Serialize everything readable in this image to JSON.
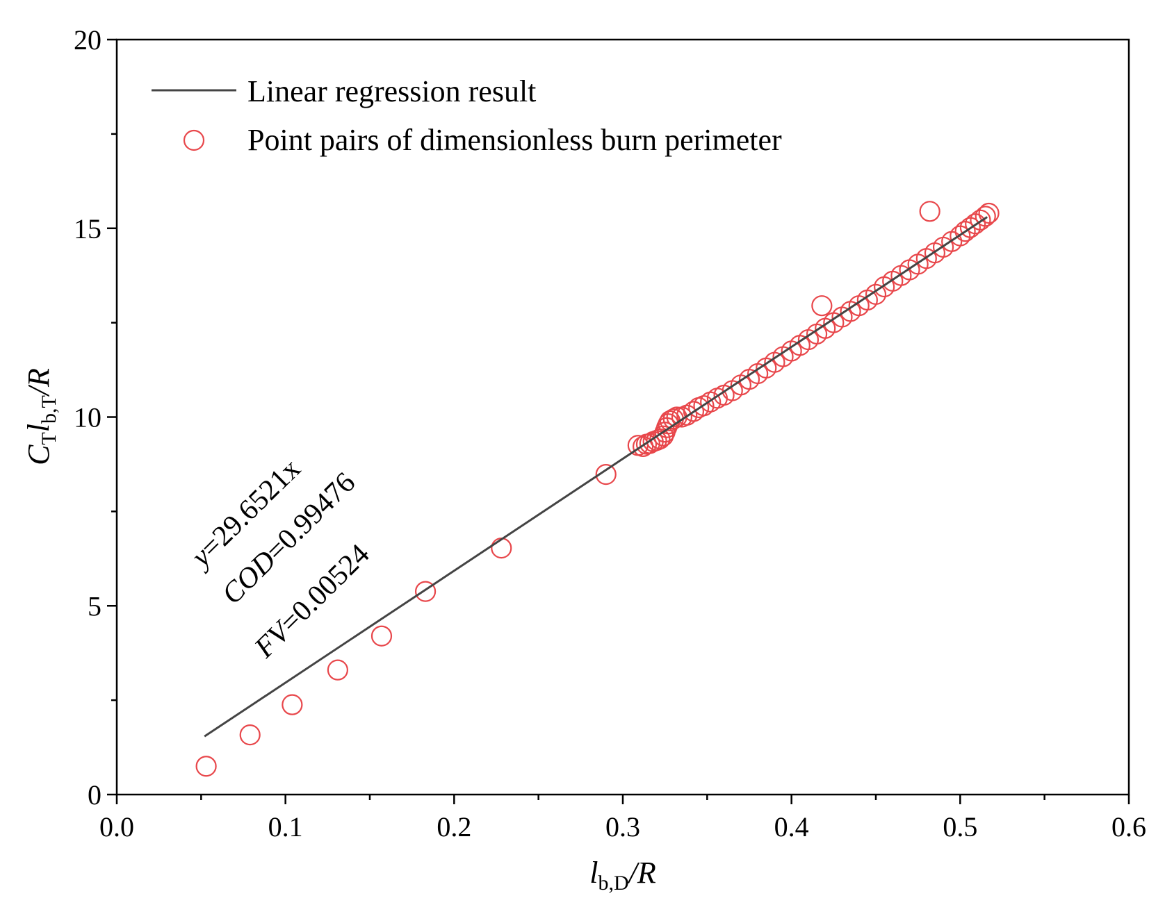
{
  "chart_data": {
    "type": "scatter",
    "title": "",
    "xlabel": {
      "base": "l",
      "sub": "b,D",
      "suffix": "/R"
    },
    "ylabel": {
      "prefix": "C",
      "prefix_sub": "T",
      "base": "l",
      "sub": "b,T",
      "suffix": "/R"
    },
    "xlim": [
      0.0,
      0.6
    ],
    "ylim": [
      0,
      20
    ],
    "x_ticks": [
      "0.0",
      "0.1",
      "0.2",
      "0.3",
      "0.4",
      "0.5",
      "0.6"
    ],
    "y_ticks": [
      "0",
      "5",
      "10",
      "15",
      "20"
    ],
    "x_tick_values": [
      0.0,
      0.1,
      0.2,
      0.3,
      0.4,
      0.5,
      0.6
    ],
    "y_tick_values": [
      0,
      5,
      10,
      15,
      20
    ],
    "grid": false,
    "legend_position": "top-left",
    "colors": {
      "line": "#444444",
      "points": "#e8474b",
      "axes": "#000000"
    },
    "series": [
      {
        "name": "Linear regression result",
        "type": "line",
        "slope": 29.6521,
        "x": [
          0.052,
          0.516
        ],
        "y": [
          1.54,
          15.3
        ]
      },
      {
        "name": "Point pairs of dimensionless burn perimeter",
        "type": "scatter",
        "points": [
          [
            0.053,
            0.75
          ],
          [
            0.079,
            1.58
          ],
          [
            0.104,
            2.38
          ],
          [
            0.131,
            3.3
          ],
          [
            0.157,
            4.2
          ],
          [
            0.183,
            5.38
          ],
          [
            0.228,
            6.53
          ],
          [
            0.29,
            8.48
          ],
          [
            0.309,
            9.25
          ],
          [
            0.312,
            9.22
          ],
          [
            0.314,
            9.28
          ],
          [
            0.316,
            9.3
          ],
          [
            0.318,
            9.35
          ],
          [
            0.32,
            9.38
          ],
          [
            0.322,
            9.42
          ],
          [
            0.324,
            9.5
          ],
          [
            0.325,
            9.6
          ],
          [
            0.326,
            9.72
          ],
          [
            0.327,
            9.82
          ],
          [
            0.328,
            9.9
          ],
          [
            0.33,
            9.95
          ],
          [
            0.332,
            10.0
          ],
          [
            0.335,
            10.0
          ],
          [
            0.338,
            10.05
          ],
          [
            0.342,
            10.15
          ],
          [
            0.345,
            10.25
          ],
          [
            0.348,
            10.3
          ],
          [
            0.352,
            10.4
          ],
          [
            0.356,
            10.5
          ],
          [
            0.36,
            10.58
          ],
          [
            0.365,
            10.7
          ],
          [
            0.37,
            10.85
          ],
          [
            0.375,
            11.0
          ],
          [
            0.38,
            11.15
          ],
          [
            0.385,
            11.3
          ],
          [
            0.39,
            11.45
          ],
          [
            0.395,
            11.6
          ],
          [
            0.4,
            11.75
          ],
          [
            0.405,
            11.9
          ],
          [
            0.41,
            12.05
          ],
          [
            0.415,
            12.2
          ],
          [
            0.418,
            12.95
          ],
          [
            0.42,
            12.35
          ],
          [
            0.425,
            12.5
          ],
          [
            0.43,
            12.65
          ],
          [
            0.435,
            12.8
          ],
          [
            0.44,
            12.95
          ],
          [
            0.445,
            13.1
          ],
          [
            0.45,
            13.25
          ],
          [
            0.455,
            13.45
          ],
          [
            0.46,
            13.6
          ],
          [
            0.465,
            13.75
          ],
          [
            0.47,
            13.9
          ],
          [
            0.475,
            14.05
          ],
          [
            0.48,
            14.2
          ],
          [
            0.482,
            15.45
          ],
          [
            0.485,
            14.35
          ],
          [
            0.49,
            14.5
          ],
          [
            0.495,
            14.65
          ],
          [
            0.5,
            14.8
          ],
          [
            0.503,
            14.92
          ],
          [
            0.506,
            15.02
          ],
          [
            0.509,
            15.12
          ],
          [
            0.512,
            15.22
          ],
          [
            0.515,
            15.32
          ],
          [
            0.517,
            15.4
          ]
        ]
      }
    ],
    "annotations": [
      {
        "var": "y",
        "text": "=29.6521x"
      },
      {
        "var": "COD",
        "text": "=0.99476"
      },
      {
        "var": "FV",
        "text": "=0.00524"
      }
    ]
  }
}
